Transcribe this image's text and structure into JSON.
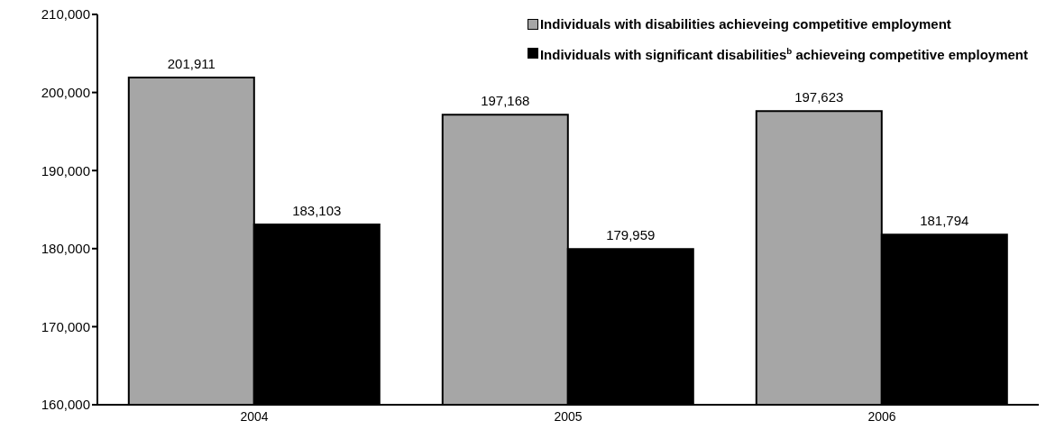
{
  "chart_data": {
    "type": "bar",
    "categories": [
      "2004",
      "2005",
      "2006"
    ],
    "series": [
      {
        "name": "Individuals with disabilities achieveing competitive employment",
        "color": "#a6a6a6",
        "values": [
          201911,
          197168,
          197623
        ],
        "value_labels": [
          "201,911",
          "197,168",
          "197,623"
        ]
      },
      {
        "name": "Individuals with significant disabilities$^{b}$ achieveing competitive employment",
        "color": "#000000",
        "values": [
          183103,
          179959,
          181794
        ],
        "value_labels": [
          "183,103",
          "179,959",
          "181,794"
        ]
      }
    ],
    "ylim": [
      160000,
      210000
    ],
    "yticks": [
      {
        "value": 160000,
        "label": "160,000"
      },
      {
        "value": 170000,
        "label": "170,000"
      },
      {
        "value": 180000,
        "label": "180,000"
      },
      {
        "value": 190000,
        "label": "190,000"
      },
      {
        "value": 200000,
        "label": "200,000"
      },
      {
        "value": 210000,
        "label": "210,000"
      }
    ],
    "legend": "top right"
  }
}
